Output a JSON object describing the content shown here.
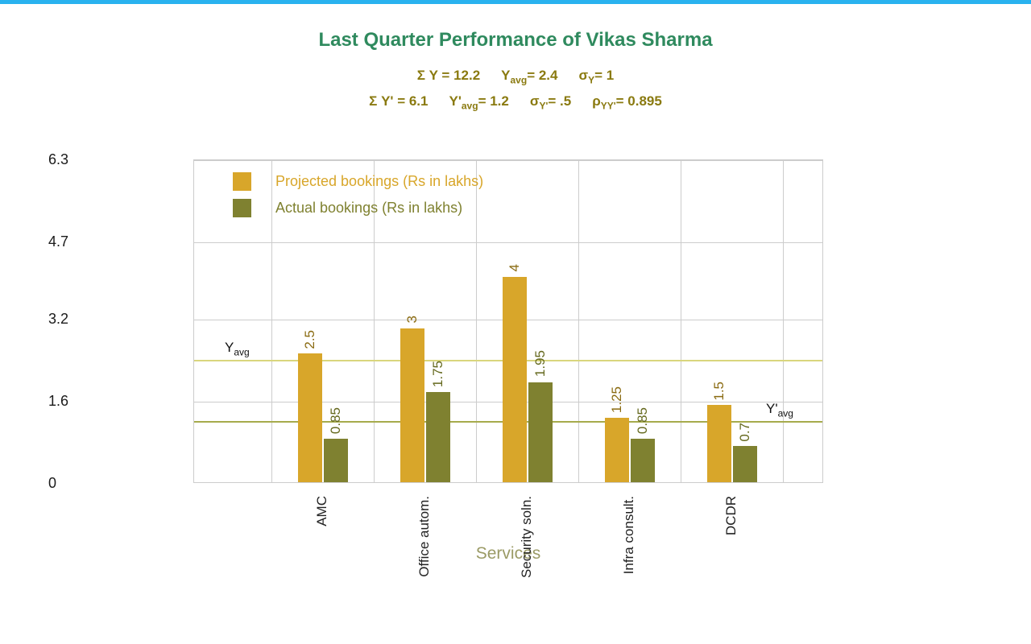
{
  "page": {
    "accent_bar_color": "#29b2ef",
    "background_color": "#ffffff"
  },
  "stats": {
    "text_color": "#8a7a10",
    "line1": [
      {
        "t": "Σ Y = 12.2"
      },
      {
        "t": "Y",
        "sub": "avg",
        "after": "= 2.4"
      },
      {
        "t": "σ",
        "sub": "Y",
        "after": "= 1"
      }
    ],
    "line2": [
      {
        "t": "Σ Y' = 6.1"
      },
      {
        "t": "Y'",
        "sub": "avg",
        "after": "= 1.2"
      },
      {
        "t": "σ",
        "sub": "Y'",
        "after": "= .5"
      },
      {
        "t": "ρ",
        "sub": "YY'",
        "after": "= 0.895"
      }
    ]
  },
  "chart_data": {
    "type": "bar",
    "title": "Last Quarter Performance of Vikas Sharma",
    "title_color": "#2f8a5e",
    "xlabel": "Services",
    "xlabel_color": "#9b9b66",
    "ylabel": "",
    "categories": [
      "AMC",
      "Office autom.",
      "Security soln.",
      "Infra consult.",
      "DCDR"
    ],
    "series": [
      {
        "name": "Projected bookings (Rs in lakhs)",
        "color": "#d8a62a",
        "label_color": "#8a6b12",
        "values": [
          2.5,
          3,
          4,
          1.25,
          1.5
        ]
      },
      {
        "name": "Actual bookings (Rs in lakhs)",
        "color": "#7f8130",
        "label_color": "#65691e",
        "values": [
          0.85,
          1.75,
          1.95,
          0.85,
          0.7
        ]
      }
    ],
    "yticks": [
      0,
      1.6,
      3.2,
      4.7,
      6.3
    ],
    "ylim": [
      0,
      6.3
    ],
    "grid": true,
    "gridline_color": "#cccccc",
    "axis_text_color": "#1b1b1b",
    "legend_position": "top-left",
    "ref_lines": [
      {
        "base": "Y",
        "sub": "avg",
        "value": 2.4,
        "color": "#d9d67d",
        "side": "left"
      },
      {
        "base": "Y'",
        "sub": "avg",
        "value": 1.2,
        "color": "#a6ab4c",
        "side": "right"
      }
    ]
  }
}
